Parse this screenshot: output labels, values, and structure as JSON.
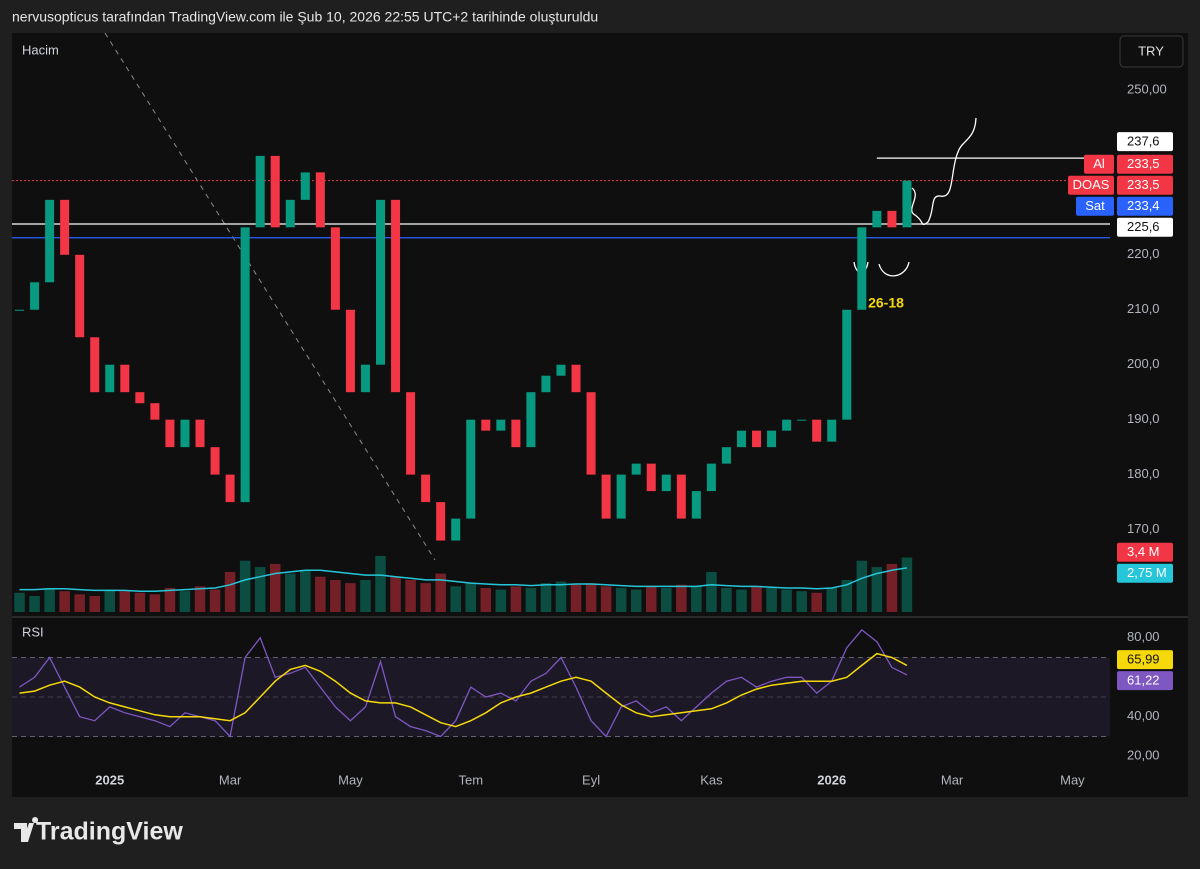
{
  "header": "nervusopticus tarafından TradingView.com ile Şub 10, 2026 22:55 UTC+2 tarihinde oluşturuldu",
  "brand": "TradingView",
  "chart_data": [
    {
      "type": "candlestick",
      "currency": "TRY",
      "categories": [
        null,
        null,
        null,
        null,
        null,
        null,
        "2025",
        null,
        null,
        null,
        null,
        null,
        null,
        null,
        "Mar",
        null,
        null,
        null,
        null,
        null,
        null,
        null,
        "May",
        null,
        null,
        null,
        null,
        null,
        null,
        null,
        "Tem",
        null,
        null,
        null,
        null,
        null,
        null,
        null,
        "Eyl",
        null,
        null,
        null,
        null,
        null,
        null,
        null,
        "Kas",
        null,
        null,
        null,
        null,
        null,
        null,
        null,
        "2026",
        null,
        null,
        null,
        null,
        null,
        null,
        null,
        "Mar",
        null,
        null,
        null,
        null,
        null,
        null,
        null,
        "May",
        null,
        null
      ],
      "values": [
        210,
        215,
        230,
        220,
        205,
        195,
        200,
        195,
        193,
        190,
        185,
        190,
        185,
        180,
        175,
        225,
        238,
        225,
        230,
        235,
        225,
        210,
        195,
        200,
        230,
        195,
        180,
        175,
        168,
        172,
        190,
        188,
        190,
        185,
        195,
        198,
        200,
        195,
        180,
        172,
        180,
        182,
        177,
        180,
        172,
        177,
        182,
        185,
        188,
        185,
        188,
        190,
        190,
        186,
        190,
        210,
        225,
        228,
        225,
        233.5,
        null,
        null,
        null,
        null,
        null,
        null,
        null,
        null,
        null,
        null,
        null,
        null,
        null
      ],
      "colors": {
        "up": "#089981",
        "down": "#f23645"
      },
      "ylim": [
        155,
        260
      ],
      "yticks": [
        {
          "value": 250,
          "label": "250,00"
        },
        {
          "value": 220,
          "label": "220,0"
        },
        {
          "value": 210,
          "label": "210,0"
        },
        {
          "value": 200,
          "label": "200,0"
        },
        {
          "value": 190,
          "label": "190,0"
        },
        {
          "value": 180,
          "label": "180,0"
        },
        {
          "value": 170,
          "label": "170,0"
        }
      ],
      "y2lim": [
        0,
        36
      ],
      "volume": {
        "name": "Hacim",
        "values": [
          1.2,
          1.0,
          1.5,
          1.3,
          1.1,
          1.0,
          1.4,
          1.3,
          1.2,
          1.1,
          1.5,
          1.3,
          1.6,
          1.4,
          2.5,
          3.2,
          2.8,
          3.0,
          2.4,
          2.6,
          2.2,
          2.0,
          1.8,
          2.0,
          3.5,
          2.2,
          2.0,
          1.8,
          2.4,
          1.6,
          1.8,
          1.5,
          1.4,
          1.6,
          1.5,
          1.8,
          1.9,
          1.7,
          1.8,
          1.6,
          1.5,
          1.4,
          1.6,
          1.5,
          1.7,
          1.6,
          2.5,
          1.5,
          1.4,
          1.6,
          1.5,
          1.4,
          1.3,
          1.2,
          1.5,
          2.0,
          3.2,
          2.8,
          3.0,
          3.4,
          null,
          null,
          null,
          null,
          null,
          null,
          null,
          null,
          null,
          null,
          null,
          null,
          null
        ],
        "ma": [
          1.4,
          1.4,
          1.45,
          1.45,
          1.4,
          1.35,
          1.35,
          1.35,
          1.3,
          1.3,
          1.35,
          1.4,
          1.45,
          1.5,
          1.7,
          2.0,
          2.2,
          2.4,
          2.5,
          2.6,
          2.6,
          2.5,
          2.4,
          2.3,
          2.3,
          2.2,
          2.1,
          2.0,
          2.0,
          1.9,
          1.8,
          1.75,
          1.7,
          1.7,
          1.65,
          1.7,
          1.7,
          1.75,
          1.75,
          1.7,
          1.65,
          1.6,
          1.6,
          1.6,
          1.6,
          1.6,
          1.7,
          1.65,
          1.6,
          1.6,
          1.55,
          1.5,
          1.5,
          1.45,
          1.5,
          1.7,
          2.1,
          2.4,
          2.6,
          2.75,
          null,
          null,
          null,
          null,
          null,
          null,
          null,
          null,
          null,
          null,
          null,
          null,
          null
        ],
        "ma_color": "#26c6da",
        "tags": [
          {
            "value": 3.4,
            "label": "3,4 M",
            "color": "#f23645"
          },
          {
            "value": 2.75,
            "label": "2,75 M",
            "color": "#26c6da"
          }
        ]
      },
      "price_tags": [
        {
          "value": 237.6,
          "label": "237,6",
          "color": "#ffffff",
          "line": "segment"
        },
        {
          "name": "Al",
          "value": 233.5,
          "label": "233,5",
          "color": "#f23645",
          "line": "none"
        },
        {
          "name": "DOAS",
          "value": 233.5,
          "label": "233,5",
          "color": "#f23645",
          "line": "dotted"
        },
        {
          "name": "Sat",
          "value": 233.4,
          "label": "233,4",
          "color": "#2962ff",
          "line": "none"
        },
        {
          "value": 225.6,
          "label": "225,6",
          "color": "#ffffff",
          "line": "solid"
        }
      ],
      "lines": [
        {
          "value": 223.1,
          "color": "#2962ff"
        }
      ],
      "annotation": {
        "text": "26-18",
        "color": "#f5d90a"
      }
    },
    {
      "type": "line",
      "title": "RSI",
      "rsi": {
        "color": "#7e57c2",
        "values": [
          55,
          60,
          70,
          55,
          40,
          38,
          45,
          42,
          40,
          38,
          35,
          42,
          40,
          38,
          30,
          70,
          80,
          60,
          62,
          65,
          55,
          45,
          38,
          45,
          68,
          40,
          35,
          33,
          30,
          38,
          55,
          50,
          52,
          48,
          58,
          62,
          70,
          55,
          38,
          30,
          45,
          48,
          42,
          45,
          38,
          45,
          52,
          58,
          60,
          55,
          58,
          60,
          60,
          52,
          58,
          75,
          84,
          78,
          65,
          61.22,
          null,
          null,
          null,
          null,
          null,
          null,
          null,
          null,
          null,
          null,
          null,
          null,
          null
        ]
      },
      "ma": {
        "color": "#f5d90a",
        "values": [
          52,
          53,
          56,
          58,
          55,
          50,
          47,
          45,
          43,
          41,
          40,
          40,
          40,
          39,
          38,
          42,
          50,
          58,
          64,
          66,
          63,
          58,
          52,
          48,
          47,
          47,
          45,
          41,
          37,
          35,
          38,
          42,
          47,
          50,
          52,
          55,
          58,
          60,
          58,
          52,
          46,
          42,
          40,
          41,
          42,
          43,
          44,
          47,
          51,
          54,
          56,
          57,
          58,
          58,
          58,
          60,
          66,
          72,
          70,
          65.99,
          null,
          null,
          null,
          null,
          null,
          null,
          null,
          null,
          null,
          null,
          null,
          null,
          null
        ]
      },
      "ylim": [
        12,
        88
      ],
      "yticks": [
        {
          "value": 80,
          "label": "80,00"
        },
        {
          "value": 40,
          "label": "40,00"
        },
        {
          "value": 20,
          "label": "20,00"
        }
      ],
      "bands": [
        70,
        50,
        30
      ],
      "tags": [
        {
          "value": 65.99,
          "label": "65,99",
          "color": "#f5d90a"
        },
        {
          "value": 61.22,
          "label": "61,22",
          "color": "#7e57c2"
        }
      ]
    }
  ]
}
